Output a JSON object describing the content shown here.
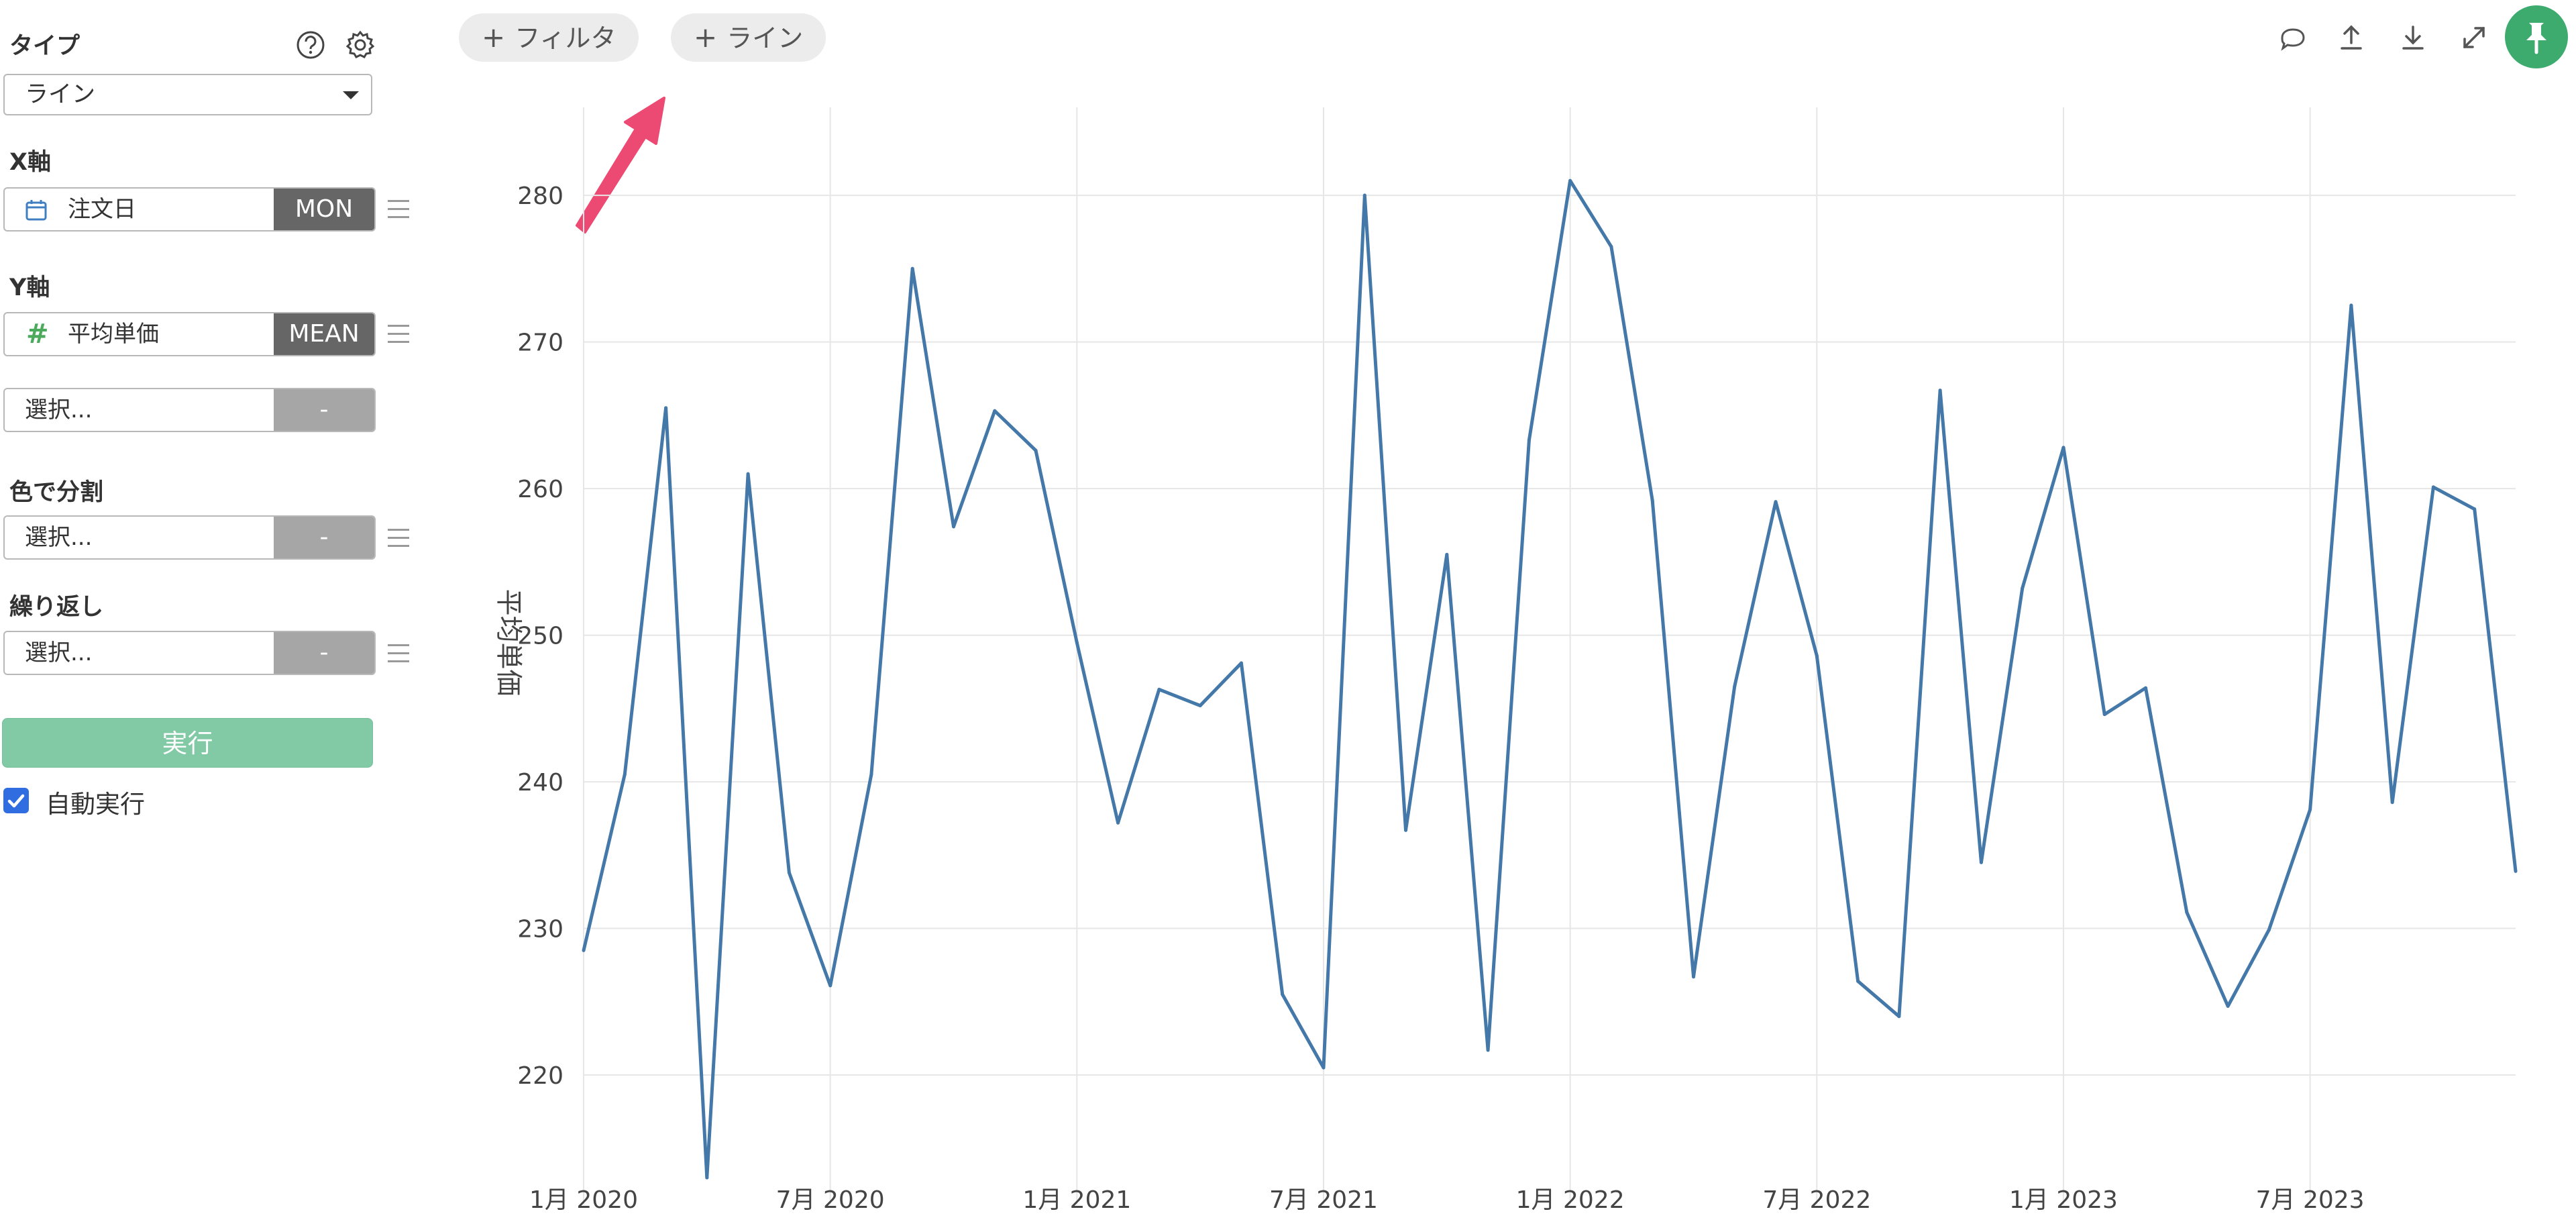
{
  "sidebar": {
    "type_label": "タイプ",
    "type_value": "ライン",
    "x_label": "X軸",
    "x_field": "注文日",
    "x_agg": "MON",
    "y_label": "Y軸",
    "y_field": "平均単価",
    "y_agg": "MEAN",
    "y_extra_placeholder": "選択...",
    "y_extra_agg": "-",
    "color_label": "色で分割",
    "color_placeholder": "選択...",
    "color_agg": "-",
    "repeat_label": "繰り返し",
    "repeat_placeholder": "選択...",
    "repeat_agg": "-",
    "run_label": "実行",
    "auto_run_label": "自動実行",
    "auto_run_checked": true
  },
  "toolbar": {
    "filter_label": "フィルタ",
    "line_label": "ライン",
    "plus_glyph": "+"
  },
  "colors": {
    "series": "#4378a8",
    "run_button": "#82c9a5",
    "pin_button": "#3daa6e",
    "arrow": "#ec4a72",
    "checkbox": "#2f6de1"
  },
  "chart_data": {
    "type": "line",
    "title": "",
    "xlabel": "",
    "ylabel": "平均単価",
    "ylim": [
      213,
      286
    ],
    "y_ticks": [
      220,
      230,
      240,
      250,
      260,
      270,
      280
    ],
    "grid": true,
    "x_tick_labels": [
      "1月 2020",
      "7月 2020",
      "1月 2021",
      "7月 2021",
      "1月 2022",
      "7月 2022",
      "1月 2023",
      "7月 2023"
    ],
    "series": [
      {
        "x": [
          "2020-01",
          "2020-02",
          "2020-03",
          "2020-04",
          "2020-05",
          "2020-06",
          "2020-07",
          "2020-08",
          "2020-09",
          "2020-10",
          "2020-11",
          "2020-12",
          "2021-01",
          "2021-02",
          "2021-03",
          "2021-04",
          "2021-05",
          "2021-06",
          "2021-07",
          "2021-08",
          "2021-09",
          "2021-10",
          "2021-11",
          "2021-12",
          "2022-01",
          "2022-02",
          "2022-03",
          "2022-04",
          "2022-05",
          "2022-06",
          "2022-07",
          "2022-08",
          "2022-09",
          "2022-10",
          "2022-11",
          "2022-12",
          "2023-01",
          "2023-02",
          "2023-03",
          "2023-04",
          "2023-05",
          "2023-06",
          "2023-07",
          "2023-08",
          "2023-09",
          "2023-10",
          "2023-11",
          "2023-12"
        ],
        "values": [
          228.5,
          240.5,
          265.5,
          213,
          261,
          233.8,
          226.1,
          240.5,
          275,
          257.4,
          265.3,
          262.6,
          249.5,
          237.2,
          246.3,
          245.2,
          248.1,
          225.5,
          220.5,
          280,
          236.7,
          255.5,
          221.7,
          263.3,
          281,
          276.5,
          259.2,
          226.7,
          246.5,
          259.1,
          248.6,
          226.4,
          224,
          266.7,
          234.5,
          253.2,
          262.8,
          244.6,
          246.4,
          231.1,
          224.7,
          229.9,
          238.1,
          272.5,
          238.6,
          260.1,
          258.6,
          233.9
        ]
      }
    ]
  }
}
